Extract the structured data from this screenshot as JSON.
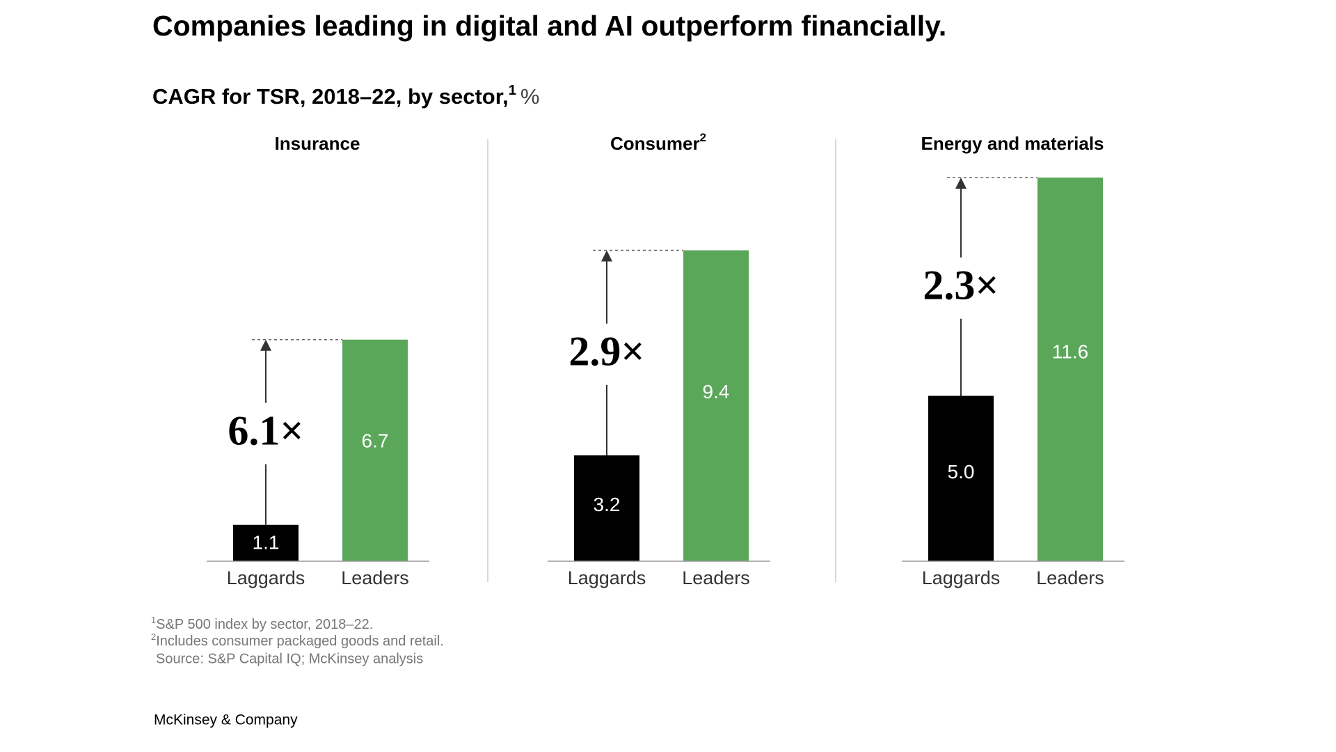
{
  "title": "Companies leading in digital and AI outperform financially.",
  "subtitle": {
    "text": "CAGR for TSR, 2018–22, by sector,",
    "note": "1",
    "unit": "%"
  },
  "chart_data": [
    {
      "type": "bar",
      "title": "Insurance",
      "categories": [
        "Laggards",
        "Leaders"
      ],
      "values": [
        1.1,
        6.7
      ],
      "value_labels": [
        "1.1",
        "6.7"
      ],
      "colors": [
        "#000000",
        "#5aa75a"
      ],
      "annotation": "6.1×",
      "ylim": [
        0,
        12
      ]
    },
    {
      "type": "bar",
      "title": "Consumer",
      "title_note": "2",
      "categories": [
        "Laggards",
        "Leaders"
      ],
      "values": [
        3.2,
        9.4
      ],
      "value_labels": [
        "3.2",
        "9.4"
      ],
      "colors": [
        "#000000",
        "#5aa75a"
      ],
      "annotation": "2.9×",
      "ylim": [
        0,
        12
      ]
    },
    {
      "type": "bar",
      "title": "Energy and materials",
      "categories": [
        "Laggards",
        "Leaders"
      ],
      "values": [
        5.0,
        11.6
      ],
      "value_labels": [
        "5.0",
        "11.6"
      ],
      "colors": [
        "#000000",
        "#5aa75a"
      ],
      "annotation": "2.3×",
      "ylim": [
        0,
        12
      ]
    }
  ],
  "footnotes": [
    {
      "marker": "1",
      "text": "S&P 500 index by sector, 2018–22."
    },
    {
      "marker": "2",
      "text": "Includes consumer packaged goods and retail."
    }
  ],
  "source": "Source: S&P Capital IQ; McKinsey analysis",
  "logo": "McKinsey & Company"
}
